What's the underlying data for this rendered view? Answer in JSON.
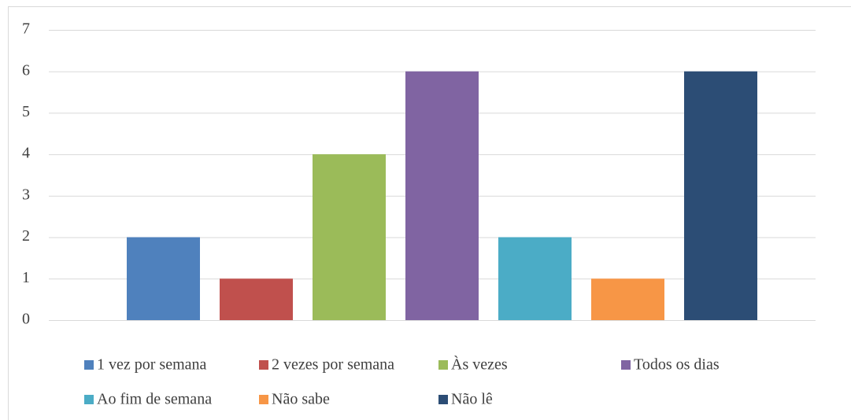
{
  "chart_data": {
    "type": "bar",
    "series": [
      {
        "name": "1 vez por semana",
        "color": "#4f81bd",
        "values": [
          2
        ]
      },
      {
        "name": "2 vezes por semana",
        "color": "#c0504d",
        "values": [
          1
        ]
      },
      {
        "name": "Às vezes",
        "color": "#9bbb59",
        "values": [
          4
        ]
      },
      {
        "name": "Todos os dias",
        "color": "#8064a2",
        "values": [
          6
        ]
      },
      {
        "name": "Ao fim de semana",
        "color": "#4bacc6",
        "values": [
          2
        ]
      },
      {
        "name": "Não sabe",
        "color": "#f79646",
        "values": [
          1
        ]
      },
      {
        "name": "Não lê",
        "color": "#2c4d75",
        "values": [
          6
        ]
      }
    ],
    "ylim": [
      0,
      7
    ],
    "yticks": [
      0,
      1,
      2,
      3,
      4,
      5,
      6,
      7
    ],
    "grid": true,
    "legend": "bottom"
  }
}
